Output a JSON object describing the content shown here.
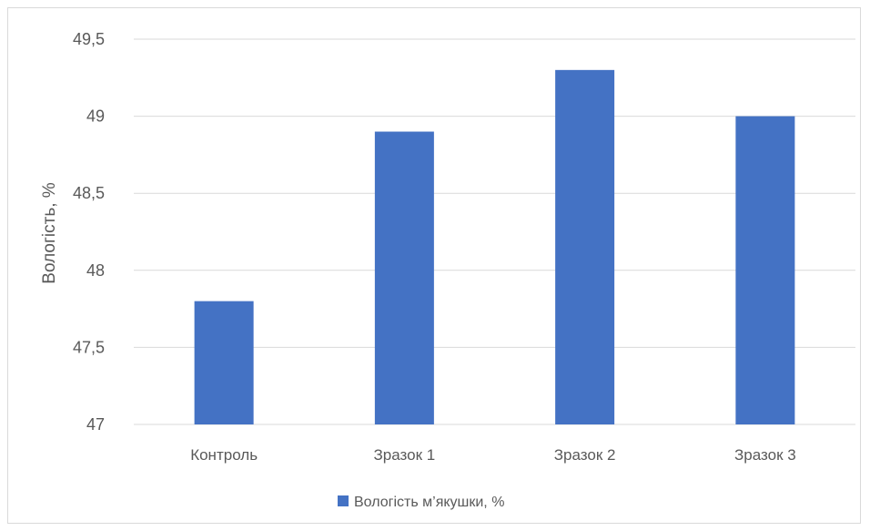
{
  "chart_data": {
    "type": "bar",
    "categories": [
      "Контроль",
      "Зразок 1",
      "Зразок 2",
      "Зразок 3"
    ],
    "series": [
      {
        "name": "Вологість м’якушки, %",
        "values": [
          47.8,
          48.9,
          49.3,
          49.0
        ],
        "color": "#4472c4"
      }
    ],
    "ylabel": "Вологість, %",
    "xlabel": "",
    "ylim": [
      47,
      49.5
    ],
    "yticks": [
      "47",
      "47,5",
      "48",
      "48,5",
      "49",
      "49,5"
    ],
    "grid": true,
    "legend_position": "bottom"
  }
}
